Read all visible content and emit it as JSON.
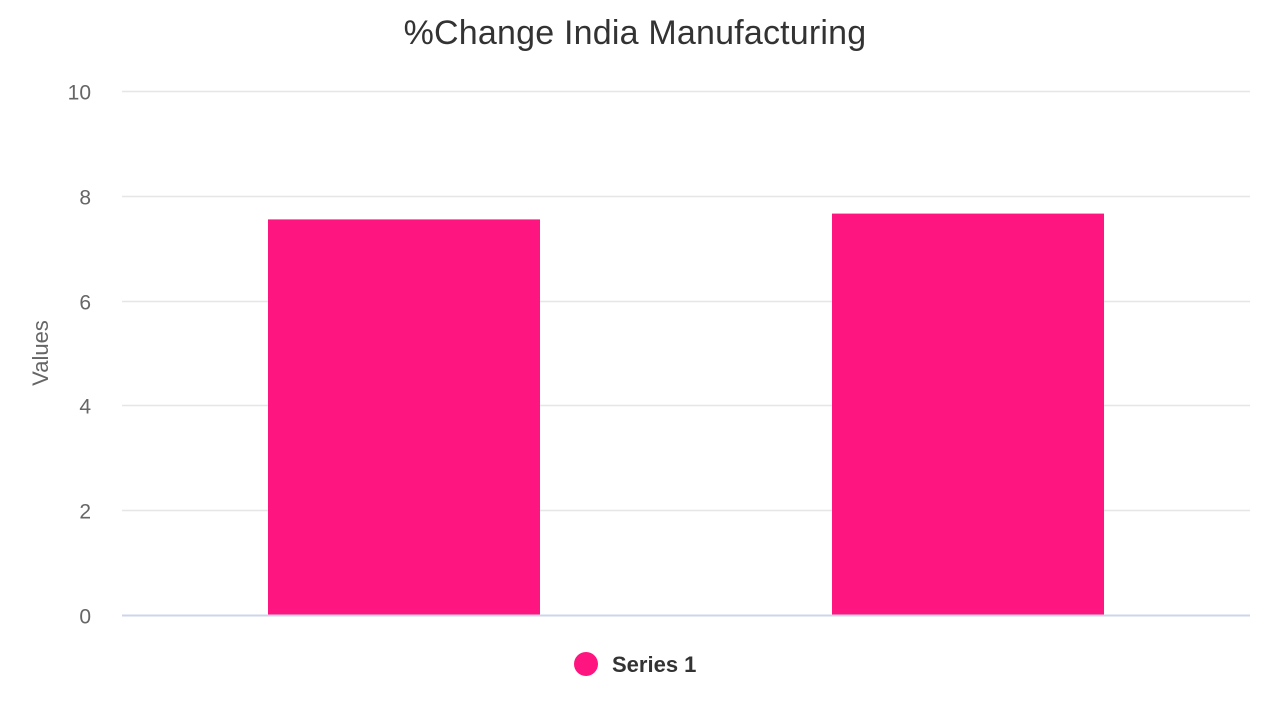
{
  "chart_data": {
    "type": "bar",
    "title": "%Change India Manufacturing",
    "categories": [
      "",
      ""
    ],
    "series": [
      {
        "name": "Series 1",
        "values": [
          7.55,
          7.66
        ],
        "color": "#ff1580"
      }
    ],
    "xlabel": "",
    "ylabel": "Values",
    "ylim": [
      0,
      10
    ],
    "yticks": [
      0,
      2,
      4,
      6,
      8,
      10
    ],
    "grid": true,
    "legend": "bottom-center",
    "colors": {
      "grid": "#e6e6e6",
      "axis": "#ccd6eb",
      "bar": "#ff1580"
    }
  }
}
